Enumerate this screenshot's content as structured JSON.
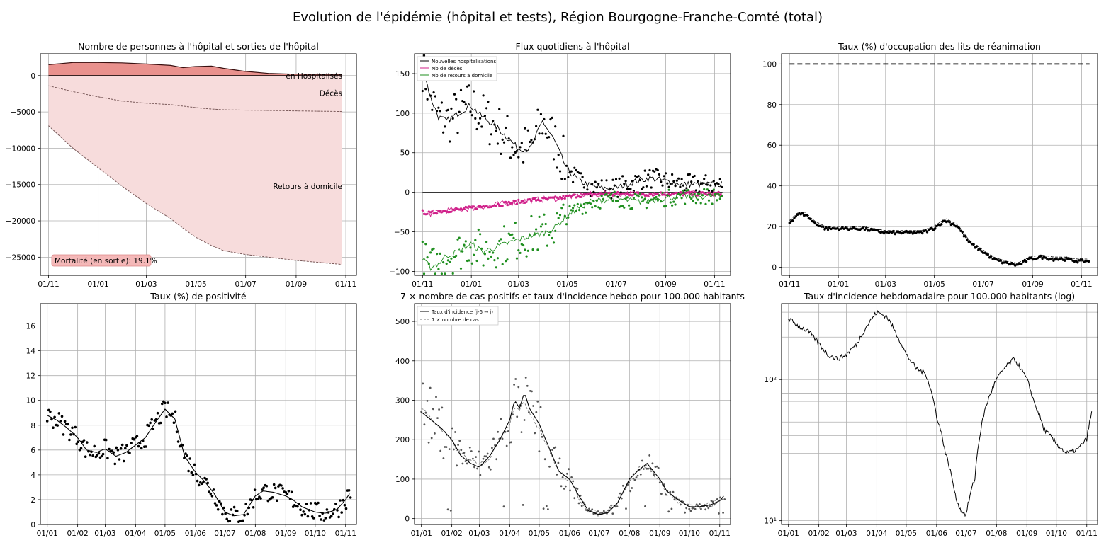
{
  "figure": {
    "title": "Evolution de l'épidémie (hôpital et tests), Région Bourgogne-Franche-Comté (total)"
  },
  "chart_data": [
    {
      "id": "hospital_stock",
      "type": "area",
      "title": "Nombre de personnes à l'hôpital et sorties de l'hôpital",
      "xlabel": "",
      "ylabel": "",
      "x_ticks": [
        "01/11",
        "01/01",
        "01/03",
        "01/05",
        "01/07",
        "01/09",
        "01/11"
      ],
      "y_ticks": [
        "0",
        "−5000",
        "−10000",
        "−15000",
        "−20000",
        "−25000"
      ],
      "ylim": [
        -27500,
        3000
      ],
      "grid": true,
      "annotations": [
        "en Hospitalisés",
        "Décès",
        "Retours à domicile"
      ],
      "box_label": "Mortalité (en sortie): 19.1%",
      "x_days": [
        0,
        30,
        60,
        90,
        120,
        150,
        165,
        180,
        200,
        215,
        240,
        270,
        300,
        330,
        360
      ],
      "series": [
        {
          "name": "en Hospitalisés",
          "values": [
            1500,
            1800,
            1800,
            1750,
            1600,
            1400,
            1100,
            1250,
            1300,
            1000,
            600,
            300,
            200,
            150,
            150
          ]
        },
        {
          "name": "Décès",
          "values": [
            -1400,
            -2200,
            -2900,
            -3500,
            -3800,
            -4000,
            -4200,
            -4400,
            -4600,
            -4700,
            -4750,
            -4800,
            -4850,
            -4900,
            -4950
          ]
        },
        {
          "name": "Retours à domicile",
          "values": [
            -6900,
            -10000,
            -12600,
            -15200,
            -17600,
            -19700,
            -21000,
            -22200,
            -23400,
            -24100,
            -24600,
            -25000,
            -25400,
            -25700,
            -26000
          ]
        }
      ]
    },
    {
      "id": "daily_flows",
      "type": "scatter",
      "title": "Flux quotidiens à l'hôpital",
      "xlabel": "",
      "ylabel": "",
      "x_ticks": [
        "01/11",
        "01/01",
        "01/03",
        "01/05",
        "01/07",
        "01/09",
        "01/11"
      ],
      "y_ticks": [
        "150",
        "100",
        "50",
        "0",
        "−50",
        "−100"
      ],
      "ylim": [
        -105,
        175
      ],
      "grid": true,
      "legend": "top-left",
      "x_days": [
        0,
        10,
        20,
        30,
        45,
        60,
        75,
        90,
        105,
        120,
        135,
        150,
        165,
        180,
        195,
        210,
        225,
        240,
        255,
        270,
        285,
        300,
        315,
        330,
        345,
        360,
        375
      ],
      "series": [
        {
          "name": "Nouvelles hospitalisations",
          "values": [
            160,
            120,
            95,
            90,
            100,
            110,
            95,
            85,
            70,
            55,
            55,
            90,
            65,
            30,
            15,
            8,
            5,
            5,
            10,
            15,
            18,
            15,
            12,
            10,
            10,
            10,
            10
          ]
        },
        {
          "name": "Nb de décès",
          "values": [
            -25,
            -27,
            -24,
            -23,
            -22,
            -20,
            -18,
            -16,
            -14,
            -12,
            -10,
            -9,
            -8,
            -6,
            -4,
            -3,
            -2,
            -2,
            -2,
            -2,
            -2,
            -2,
            -2,
            -2,
            -2,
            -2,
            -2
          ]
        },
        {
          "name": "Nb de retours à domicile",
          "values": [
            -85,
            -95,
            -90,
            -80,
            -75,
            -65,
            -75,
            -70,
            -65,
            -60,
            -55,
            -52,
            -45,
            -30,
            -20,
            -12,
            -10,
            -8,
            -10,
            -12,
            -10,
            -8,
            -6,
            -5,
            -5,
            -5,
            -5
          ]
        }
      ]
    },
    {
      "id": "icu_occupancy",
      "type": "line",
      "title": "Taux (%) d'occupation des lits de réanimation",
      "xlabel": "",
      "ylabel": "",
      "x_ticks": [
        "01/11",
        "01/01",
        "01/03",
        "01/05",
        "01/07",
        "01/09",
        "01/11"
      ],
      "y_ticks": [
        "100",
        "80",
        "60",
        "40",
        "20",
        "0"
      ],
      "ylim": [
        -4,
        105
      ],
      "grid": true,
      "x_days": [
        0,
        10,
        20,
        30,
        45,
        60,
        75,
        90,
        105,
        120,
        135,
        150,
        165,
        180,
        195,
        210,
        225,
        240,
        255,
        270,
        285,
        300,
        315,
        330,
        345,
        360,
        375
      ],
      "series": [
        {
          "name": "",
          "values": [
            22,
            26,
            26,
            22,
            19,
            19,
            19,
            19,
            18,
            17,
            17,
            17,
            17,
            19,
            23,
            20,
            12,
            8,
            4,
            2,
            1,
            4,
            5,
            4,
            4,
            3,
            3
          ]
        },
        {
          "name": "",
          "style": "dashed",
          "values": [
            100,
            100,
            100,
            100,
            100,
            100,
            100,
            100,
            100,
            100,
            100,
            100,
            100,
            100,
            100,
            100,
            100,
            100,
            100,
            100,
            100,
            100,
            100,
            100,
            100,
            100,
            100
          ]
        }
      ]
    },
    {
      "id": "positivity",
      "type": "scatter",
      "title": "Taux (%) de positivité",
      "xlabel": "",
      "ylabel": "",
      "x_ticks": [
        "01/01",
        "01/02",
        "01/03",
        "01/04",
        "01/05",
        "01/06",
        "01/07",
        "01/08",
        "01/09",
        "01/10",
        "01/11"
      ],
      "y_ticks": [
        "16",
        "14",
        "12",
        "10",
        "8",
        "6",
        "4",
        "2",
        "0"
      ],
      "ylim": [
        0,
        17.8
      ],
      "grid": true,
      "x_days": [
        0,
        10,
        20,
        31,
        40,
        50,
        59,
        70,
        80,
        90,
        100,
        110,
        120,
        130,
        140,
        151,
        160,
        170,
        181,
        190,
        200,
        212,
        220,
        230,
        243,
        250,
        260,
        273,
        283,
        295,
        304,
        309
      ],
      "series": [
        {
          "name": "",
          "values": [
            8.8,
            8.4,
            7.8,
            7.0,
            6.0,
            5.8,
            6.1,
            5.5,
            5.8,
            6.4,
            7.0,
            8.2,
            9.3,
            8.5,
            5.5,
            4.2,
            3.5,
            2.5,
            1.0,
            0.7,
            0.8,
            2.3,
            2.7,
            2.6,
            2.3,
            2.0,
            1.4,
            1.0,
            0.9,
            1.2,
            2.0,
            2.6
          ]
        }
      ]
    },
    {
      "id": "cases_incidence",
      "type": "scatter",
      "title": "7 × nombre de cas positifs et taux d'incidence hebdo pour 100.000 habitants",
      "xlabel": "",
      "ylabel": "",
      "x_ticks": [
        "01/01",
        "01/02",
        "01/03",
        "01/04",
        "01/05",
        "01/06",
        "01/07",
        "01/08",
        "01/09",
        "01/10",
        "01/11"
      ],
      "y_ticks": [
        "500",
        "400",
        "300",
        "200",
        "100",
        "0"
      ],
      "ylim": [
        -15,
        545
      ],
      "grid": true,
      "legend": "top-left",
      "x_days": [
        0,
        10,
        20,
        31,
        40,
        50,
        59,
        70,
        80,
        90,
        95,
        100,
        105,
        110,
        120,
        130,
        140,
        151,
        160,
        170,
        181,
        190,
        200,
        212,
        220,
        230,
        243,
        250,
        260,
        273,
        283,
        295,
        304,
        309
      ],
      "series": [
        {
          "name": "Taux d'incidence (j-6 → j)",
          "values": [
            270,
            250,
            230,
            200,
            160,
            140,
            130,
            160,
            200,
            250,
            300,
            280,
            320,
            280,
            240,
            180,
            120,
            100,
            60,
            20,
            10,
            15,
            40,
            100,
            120,
            140,
            100,
            70,
            50,
            30,
            30,
            35,
            45,
            60
          ]
        },
        {
          "name": "7 × nombre de cas",
          "style": "dashed",
          "values": [
            280,
            255,
            225,
            195,
            165,
            145,
            135,
            155,
            205,
            245,
            290,
            270,
            300,
            270,
            230,
            175,
            120,
            95,
            55,
            20,
            12,
            18,
            45,
            95,
            125,
            135,
            95,
            65,
            45,
            30,
            30,
            35,
            45,
            55
          ]
        }
      ]
    },
    {
      "id": "incidence_log",
      "type": "line",
      "title": "Taux d'incidence hebdomadaire pour 100.000 habitants (log)",
      "xlabel": "",
      "ylabel": "",
      "x_ticks": [
        "01/01",
        "01/02",
        "01/03",
        "01/04",
        "01/05",
        "01/06",
        "01/07",
        "01/08",
        "01/09",
        "01/10",
        "01/11"
      ],
      "y_ticks": [
        "10²",
        "10¹"
      ],
      "yscale": "log",
      "ylim": [
        9.4,
        345
      ],
      "grid": true,
      "x_days": [
        0,
        10,
        20,
        31,
        40,
        50,
        59,
        70,
        80,
        90,
        100,
        110,
        120,
        130,
        140,
        151,
        160,
        170,
        175,
        181,
        190,
        200,
        212,
        220,
        230,
        243,
        250,
        260,
        273,
        283,
        295,
        304,
        309
      ],
      "series": [
        {
          "name": "",
          "values": [
            270,
            240,
            220,
            180,
            150,
            140,
            150,
            180,
            240,
            300,
            280,
            210,
            150,
            120,
            110,
            55,
            30,
            15,
            12,
            11,
            20,
            60,
            100,
            120,
            140,
            100,
            70,
            45,
            35,
            30,
            32,
            38,
            58
          ]
        }
      ]
    }
  ]
}
